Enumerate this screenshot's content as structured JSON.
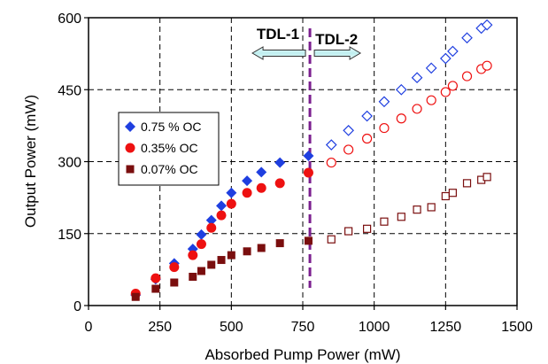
{
  "chart_data": {
    "type": "scatter",
    "title": "",
    "xlabel": "Absorbed Pump Power (mW)",
    "ylabel": "Output Power (mW)",
    "xlim": [
      0,
      1500
    ],
    "ylim": [
      0,
      600
    ],
    "xticks": [
      0,
      250,
      500,
      750,
      1000,
      1250,
      1500
    ],
    "yticks": [
      0,
      150,
      300,
      450,
      600
    ],
    "grid": true,
    "legend_position": "left-middle",
    "regions": [
      {
        "label": "TDL-1",
        "direction": "left"
      },
      {
        "label": "TDL-2",
        "direction": "right"
      }
    ],
    "divider_x": 775,
    "series": [
      {
        "name": "0.75 % OC",
        "marker": "diamond",
        "color": "#1f3fe0",
        "points": [
          [
            165,
            22
          ],
          [
            235,
            55
          ],
          [
            300,
            88
          ],
          [
            365,
            118
          ],
          [
            395,
            148
          ],
          [
            430,
            178
          ],
          [
            465,
            208
          ],
          [
            500,
            235
          ],
          [
            555,
            260
          ],
          [
            605,
            278
          ],
          [
            670,
            298
          ],
          [
            770,
            312
          ],
          [
            850,
            335
          ],
          [
            910,
            365
          ],
          [
            975,
            395
          ],
          [
            1035,
            425
          ],
          [
            1095,
            450
          ],
          [
            1150,
            475
          ],
          [
            1200,
            495
          ],
          [
            1250,
            515
          ],
          [
            1275,
            530
          ],
          [
            1325,
            558
          ],
          [
            1375,
            578
          ],
          [
            1395,
            585
          ]
        ]
      },
      {
        "name": "0.35% OC",
        "marker": "circle",
        "color": "#ee1111",
        "points": [
          [
            165,
            25
          ],
          [
            235,
            57
          ],
          [
            300,
            80
          ],
          [
            365,
            105
          ],
          [
            395,
            128
          ],
          [
            430,
            162
          ],
          [
            465,
            188
          ],
          [
            500,
            212
          ],
          [
            555,
            235
          ],
          [
            605,
            245
          ],
          [
            670,
            255
          ],
          [
            770,
            277
          ],
          [
            850,
            298
          ],
          [
            910,
            325
          ],
          [
            975,
            348
          ],
          [
            1035,
            370
          ],
          [
            1095,
            390
          ],
          [
            1150,
            410
          ],
          [
            1200,
            428
          ],
          [
            1250,
            445
          ],
          [
            1275,
            458
          ],
          [
            1325,
            478
          ],
          [
            1375,
            493
          ],
          [
            1395,
            500
          ]
        ]
      },
      {
        "name": "0.07% OC",
        "marker": "square",
        "color": "#7a0e0e",
        "points": [
          [
            165,
            18
          ],
          [
            235,
            35
          ],
          [
            300,
            48
          ],
          [
            365,
            60
          ],
          [
            395,
            72
          ],
          [
            430,
            85
          ],
          [
            465,
            95
          ],
          [
            500,
            105
          ],
          [
            555,
            113
          ],
          [
            605,
            120
          ],
          [
            670,
            130
          ],
          [
            770,
            135
          ],
          [
            850,
            138
          ],
          [
            910,
            155
          ],
          [
            975,
            160
          ],
          [
            1035,
            175
          ],
          [
            1095,
            185
          ],
          [
            1150,
            200
          ],
          [
            1200,
            205
          ],
          [
            1250,
            228
          ],
          [
            1275,
            235
          ],
          [
            1325,
            255
          ],
          [
            1375,
            262
          ],
          [
            1395,
            268
          ]
        ]
      }
    ]
  }
}
